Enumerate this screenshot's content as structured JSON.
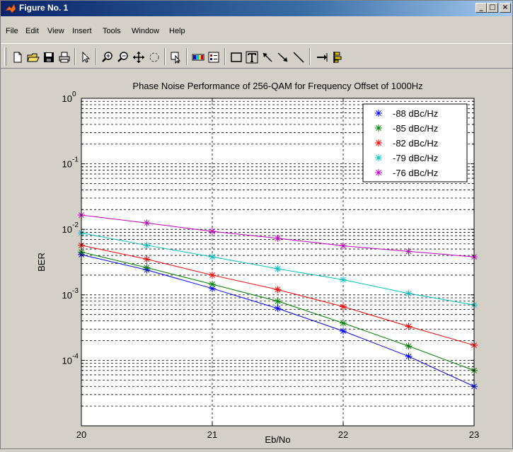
{
  "window": {
    "title": "Figure No. 1",
    "controls": [
      "_",
      "□",
      "×"
    ]
  },
  "menu": [
    "File",
    "Edit",
    "View",
    "Insert",
    "Tools",
    "Window",
    "Help"
  ],
  "toolbar": {
    "tools": [
      "new-figure-icon",
      "open-file-icon",
      "save-icon",
      "print-icon",
      "select-arrow-icon",
      "zoom-in-icon",
      "zoom-out-icon",
      "pan-icon",
      "rotate-icon",
      "data-cursor-icon",
      "colorbar-icon",
      "legend-icon",
      "rectangle-icon",
      "text-icon",
      "arrow-icon",
      "arrow-line-icon",
      "line-icon",
      "dock-icon",
      "property-icon"
    ]
  },
  "chart_data": {
    "type": "line",
    "title": "Phase Noise Performance of 256-QAM for Frequency Offset of 1000Hz",
    "xlabel": "Eb/No",
    "ylabel": "BER",
    "xlim": [
      20,
      23
    ],
    "ylim": [
      1e-05,
      1
    ],
    "yscale": "log",
    "grid": true,
    "legend_position": "top-right",
    "x_ticks": [
      "20",
      "21",
      "22",
      "23"
    ],
    "y_ticks": [
      {
        "base": "10",
        "exp": "0"
      },
      {
        "base": "10",
        "exp": "-1"
      },
      {
        "base": "10",
        "exp": "-2"
      },
      {
        "base": "10",
        "exp": "-3"
      },
      {
        "base": "10",
        "exp": "-4"
      }
    ],
    "x": [
      20,
      20.5,
      21,
      21.5,
      22,
      22.5,
      23
    ],
    "series": [
      {
        "name": "-88 dBc/Hz",
        "color": "#0000ff",
        "values": [
          0.0041,
          0.0024,
          0.00125,
          0.00062,
          0.00028,
          0.000115,
          4e-05
        ]
      },
      {
        "name": "-85 dBc/Hz",
        "color": "#008000",
        "values": [
          0.0045,
          0.0026,
          0.00145,
          0.0008,
          0.00037,
          0.000165,
          7e-05
        ]
      },
      {
        "name": "-82 dBc/Hz",
        "color": "#ff0000",
        "values": [
          0.0057,
          0.0035,
          0.002,
          0.0012,
          0.00066,
          0.00033,
          0.00017
        ]
      },
      {
        "name": "-79 dBc/Hz",
        "color": "#00bfbf",
        "values": [
          0.0088,
          0.0057,
          0.0038,
          0.0025,
          0.0017,
          0.00105,
          0.0007
        ]
      },
      {
        "name": "-76 dBc/Hz",
        "color": "#bf00bf",
        "values": [
          0.0165,
          0.0125,
          0.0093,
          0.0073,
          0.0056,
          0.0046,
          0.0038
        ]
      }
    ]
  }
}
